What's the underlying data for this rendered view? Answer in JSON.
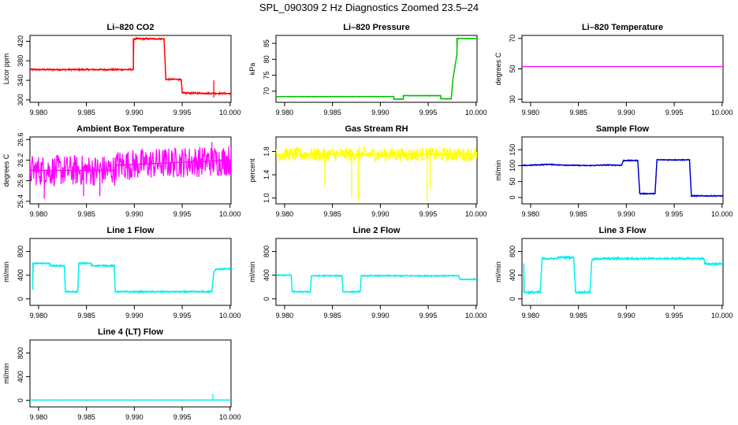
{
  "page": {
    "title": "SPL_090309  2 Hz Diagnostics Zoomed 23.5–24"
  },
  "chart_data": [
    {
      "type": "line",
      "title": "Li–820 CO2",
      "ylabel": "Licor ppm",
      "xlim": [
        9.9791,
        10.0001
      ],
      "ylim": [
        295,
        432
      ],
      "x_ticks": [
        "9.980",
        "9.985",
        "9.990",
        "9.995",
        "10.000"
      ],
      "y_ticks": [
        "300",
        "340",
        "380",
        "420"
      ],
      "color": "#ff0000",
      "noise": 2,
      "spikes": [
        {
          "x": 9.9983,
          "y": 340
        },
        {
          "x": 9.9983,
          "y": 305
        }
      ],
      "series": [
        {
          "x": [
            9.9791,
            9.9899,
            9.9899,
            9.9931,
            9.9933,
            9.9949,
            9.995,
            10.0001
          ],
          "y": [
            362,
            362,
            425,
            425,
            342,
            342,
            314,
            313
          ]
        }
      ]
    },
    {
      "type": "line",
      "title": "Li–820 Pressure",
      "ylabel": "kPa",
      "xlim": [
        9.9791,
        10.0001
      ],
      "ylim": [
        66.5,
        87.5
      ],
      "x_ticks": [
        "9.980",
        "9.985",
        "9.990",
        "9.995",
        "10.000"
      ],
      "y_ticks": [
        "70",
        "75",
        "80",
        "85"
      ],
      "color": "#00c000",
      "noise": 0.1,
      "spikes": [],
      "series": [
        {
          "x": [
            9.9791,
            9.9914,
            9.9914,
            9.9924,
            9.9924,
            9.9963,
            9.9963,
            9.9974,
            9.9976,
            9.998,
            9.998,
            10.0001
          ],
          "y": [
            68.3,
            68.3,
            67.5,
            67.5,
            68.6,
            68.6,
            67.6,
            67.6,
            74,
            81.5,
            86.5,
            86.5
          ]
        }
      ]
    },
    {
      "type": "line",
      "title": "Li–820 Temperature",
      "ylabel": "degrees C",
      "xlim": [
        9.9791,
        10.0001
      ],
      "ylim": [
        28,
        72
      ],
      "x_ticks": [
        "9.980",
        "9.985",
        "9.990",
        "9.995",
        "10.000"
      ],
      "y_ticks": [
        "30",
        "50",
        "70"
      ],
      "color": "#ff00ff",
      "noise": 0,
      "spikes": [],
      "series": [
        {
          "x": [
            9.9791,
            10.0001
          ],
          "y": [
            51.5,
            51.5
          ]
        }
      ]
    },
    {
      "type": "line",
      "title": "Ambient Box Temperature",
      "ylabel": "degrees C",
      "xlim": [
        9.9791,
        10.0001
      ],
      "ylim": [
        25.35,
        26.65
      ],
      "x_ticks": [
        "9.980",
        "9.985",
        "9.990",
        "9.995",
        "10.000"
      ],
      "y_ticks": [
        "25.4",
        "25.8",
        "26.2",
        "26.6"
      ],
      "color": "#ff00ff",
      "noise": 0.3,
      "spikes": [
        {
          "x": 9.9806,
          "y": 25.45
        },
        {
          "x": 9.9847,
          "y": 25.5
        },
        {
          "x": 9.9864,
          "y": 25.5
        },
        {
          "x": 9.9981,
          "y": 26.55
        }
      ],
      "series": [
        {
          "x": [
            9.9791,
            9.988,
            9.988,
            10.0001
          ],
          "y": [
            26.0,
            26.0,
            26.1,
            26.2
          ]
        }
      ]
    },
    {
      "type": "line",
      "title": "Gas Stream RH",
      "ylabel": "percent",
      "xlim": [
        9.9791,
        10.0001
      ],
      "ylim": [
        0.9,
        2.05
      ],
      "x_ticks": [
        "9.980",
        "9.985",
        "9.990",
        "9.995",
        "10.000"
      ],
      "y_ticks": [
        "1.0",
        "1.4",
        "1.8"
      ],
      "color": "#ffff00",
      "noise": 0.12,
      "spikes": [
        {
          "x": 9.9842,
          "y": 1.22
        },
        {
          "x": 9.987,
          "y": 1.0
        },
        {
          "x": 9.9877,
          "y": 0.95
        },
        {
          "x": 9.9949,
          "y": 0.95
        },
        {
          "x": 9.9952,
          "y": 1.15
        }
      ],
      "series": [
        {
          "x": [
            9.9791,
            10.0001
          ],
          "y": [
            1.75,
            1.75
          ]
        }
      ]
    },
    {
      "type": "line",
      "title": "Sample Flow",
      "ylabel": "ml/min",
      "xlim": [
        9.9791,
        10.0001
      ],
      "ylim": [
        -20,
        190
      ],
      "x_ticks": [
        "9.980",
        "9.985",
        "9.990",
        "9.995",
        "10.000"
      ],
      "y_ticks": [
        "0",
        "50",
        "100",
        "150"
      ],
      "color": "#0000cc",
      "noise": 2,
      "spikes": [],
      "series": [
        {
          "x": [
            9.9791,
            9.982,
            9.983,
            9.986,
            9.988,
            9.9895,
            9.9897,
            9.9912,
            9.9914,
            9.993,
            9.9932,
            9.9966,
            9.9968,
            10.0001
          ],
          "y": [
            100,
            104,
            102,
            100,
            102,
            101,
            116,
            116,
            12,
            12,
            118,
            118,
            5,
            5
          ]
        }
      ]
    },
    {
      "type": "line",
      "title": "Line 1 Flow",
      "ylabel": "ml/min",
      "xlim": [
        9.9791,
        10.0001
      ],
      "ylim": [
        -110,
        1020
      ],
      "x_ticks": [
        "9.980",
        "9.985",
        "9.990",
        "9.995",
        "10.000"
      ],
      "y_ticks": [
        "0",
        "400",
        "800"
      ],
      "color": "#00eeee",
      "noise": 15,
      "spikes": [],
      "series": [
        {
          "x": [
            9.9794,
            9.9794,
            9.9812,
            9.9812,
            9.9827,
            9.9828,
            9.9841,
            9.9842,
            9.9855,
            9.9855,
            9.9879,
            9.988,
            9.9981,
            9.9983,
            9.9985,
            10.0001
          ],
          "y": [
            150,
            600,
            600,
            560,
            560,
            120,
            120,
            600,
            600,
            560,
            560,
            120,
            120,
            450,
            500,
            510
          ]
        }
      ]
    },
    {
      "type": "line",
      "title": "Line 2 Flow",
      "ylabel": "ml/min",
      "xlim": [
        9.9791,
        10.0001
      ],
      "ylim": [
        -110,
        1020
      ],
      "x_ticks": [
        "9.980",
        "9.985",
        "9.990",
        "9.995",
        "10.000"
      ],
      "y_ticks": [
        "0",
        "400",
        "800"
      ],
      "color": "#00eeee",
      "noise": 12,
      "spikes": [],
      "series": [
        {
          "x": [
            9.9791,
            9.9807,
            9.9808,
            9.9827,
            9.9828,
            9.986,
            9.9861,
            9.9879,
            9.988,
            9.9982,
            9.9983,
            10.0001
          ],
          "y": [
            400,
            400,
            120,
            120,
            390,
            390,
            120,
            120,
            390,
            390,
            330,
            330
          ]
        }
      ]
    },
    {
      "type": "line",
      "title": "Line 3 Flow",
      "ylabel": "ml/min",
      "xlim": [
        9.9791,
        10.0001
      ],
      "ylim": [
        -110,
        1020
      ],
      "x_ticks": [
        "9.980",
        "9.985",
        "9.990",
        "9.995",
        "10.000"
      ],
      "y_ticks": [
        "0",
        "400",
        "800"
      ],
      "color": "#00eeee",
      "noise": 20,
      "spikes": [],
      "series": [
        {
          "x": [
            9.9793,
            9.9793,
            9.9795,
            9.981,
            9.9812,
            9.9827,
            9.9829,
            9.9845,
            9.9847,
            9.9862,
            9.9864,
            9.987,
            9.9981,
            9.9982,
            10.0001
          ],
          "y": [
            600,
            120,
            110,
            110,
            680,
            680,
            700,
            700,
            110,
            110,
            660,
            680,
            680,
            590,
            590
          ]
        }
      ]
    },
    {
      "type": "line",
      "title": "Line 4 (LT) Flow",
      "ylabel": "ml/min",
      "xlim": [
        9.9791,
        10.0001
      ],
      "ylim": [
        -110,
        1020
      ],
      "x_ticks": [
        "9.980",
        "9.985",
        "9.990",
        "9.995",
        "10.000"
      ],
      "y_ticks": [
        "0",
        "400",
        "800"
      ],
      "color": "#00eeee",
      "noise": 3,
      "spikes": [
        {
          "x": 9.9982,
          "y": 110
        }
      ],
      "series": [
        {
          "x": [
            9.9791,
            10.0001
          ],
          "y": [
            5,
            5
          ]
        }
      ]
    }
  ]
}
